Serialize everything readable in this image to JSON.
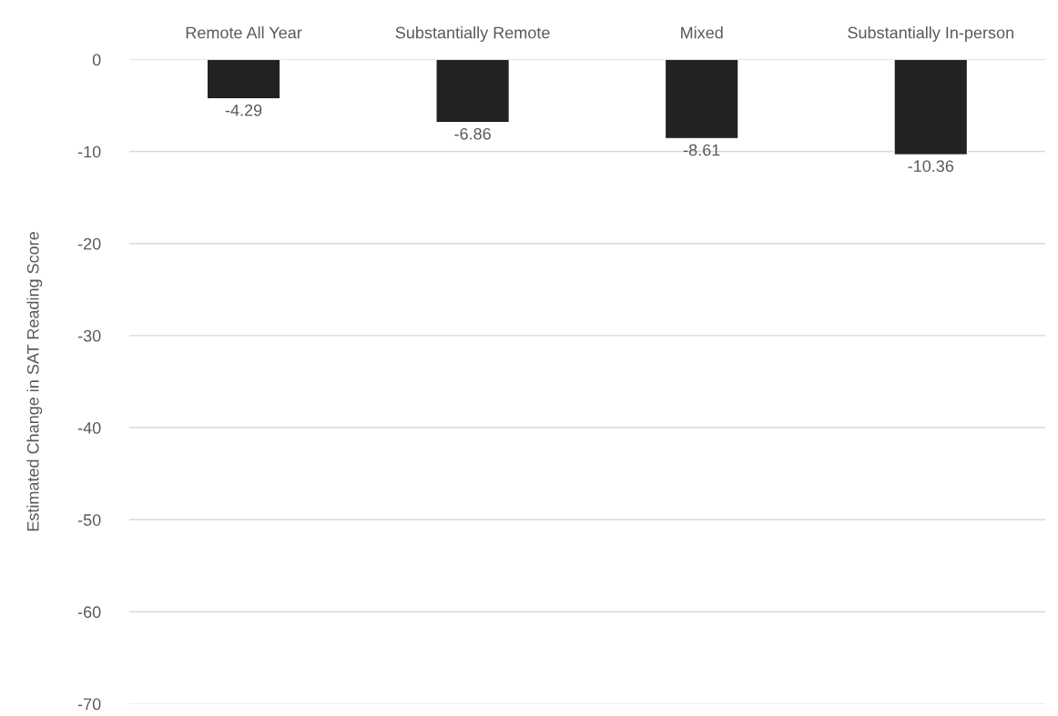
{
  "chart_data": {
    "type": "bar",
    "ylabel": "Estimated Change in SAT Reading Score",
    "categories": [
      "Remote All Year",
      "Substantially Remote",
      "Mixed",
      "Substantially In-person"
    ],
    "values": [
      -4.29,
      -6.86,
      -8.61,
      -10.36
    ],
    "color": "#222222",
    "ylim": [
      -70,
      0
    ],
    "yticks": [
      -70,
      -60,
      -50,
      -40,
      -30,
      -20,
      -10,
      0
    ],
    "grid": "y",
    "data_labels": true
  }
}
